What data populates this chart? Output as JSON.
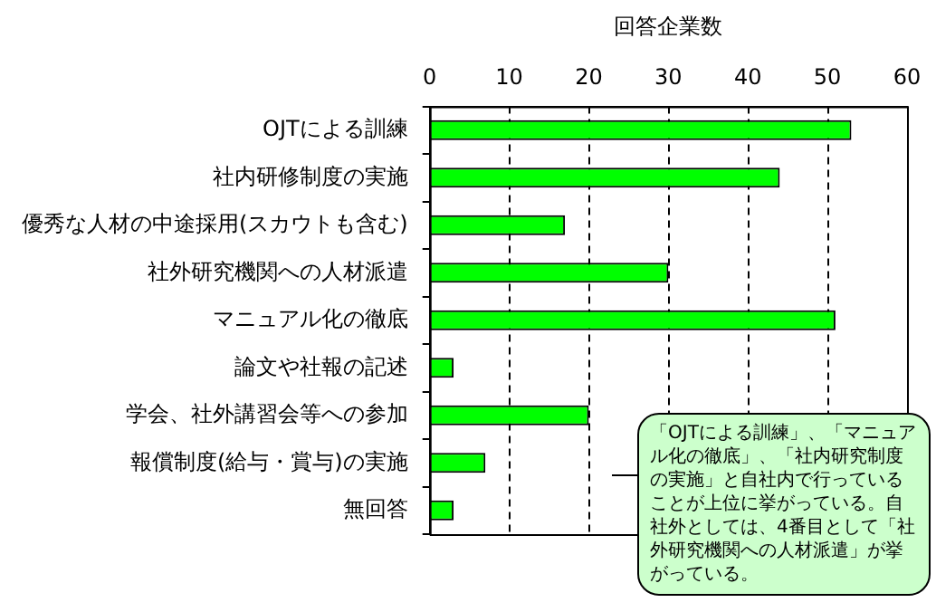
{
  "chart_data": {
    "type": "bar",
    "orientation": "horizontal",
    "xlabel": "回答企業数",
    "categories": [
      "OJTによる訓練",
      "社内研修制度の実施",
      "優秀な人材の中途採用(スカウトも含む)",
      "社外研究機関への人材派遣",
      "マニュアル化の徹底",
      "論文や社報の記述",
      "学会、社外講習会等への参加",
      "報償制度(給与・賞与)の実施",
      "無回答"
    ],
    "values": [
      53,
      44,
      17,
      30,
      51,
      3,
      20,
      7,
      3
    ],
    "color": "#00ff00",
    "xlim": [
      0,
      60
    ],
    "xticks": [
      0,
      10,
      20,
      30,
      40,
      50,
      60
    ],
    "grid": "x",
    "annotations": [
      "「OJTによる訓練」、「マニュアル化の徹底」、「社内研究制度の実施」と自社内で行っていることが上位に挙がっている。自社外としては、4番目として「社外研究機関への人材派遣」が挙がっている。"
    ]
  }
}
